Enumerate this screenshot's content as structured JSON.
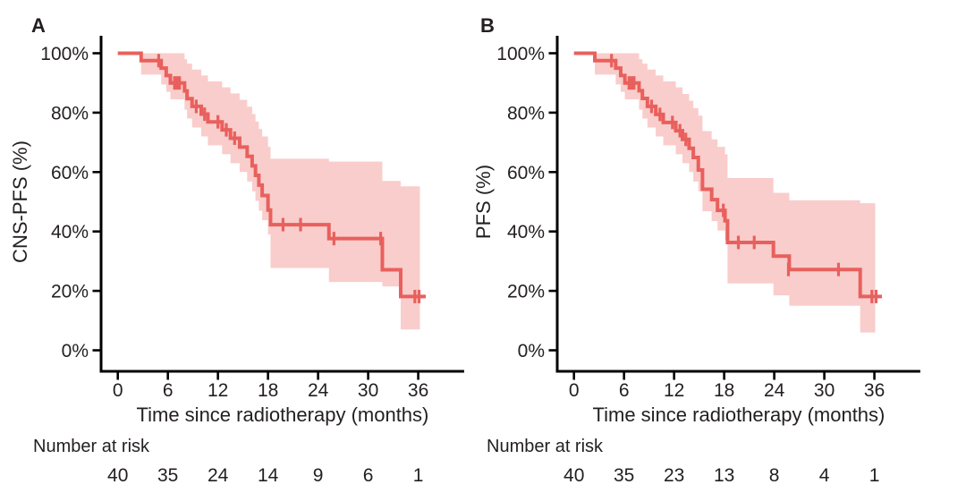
{
  "figure_title": "",
  "chart_data": [
    {
      "type": "line",
      "subtype": "kaplan-meier-survival",
      "panel_label": "A",
      "ylabel": "CNS-PFS (%)",
      "xlabel": "Time since radiotherapy (months)",
      "xlim": [
        0,
        42
      ],
      "ylim": [
        0,
        100
      ],
      "x_ticks": [
        0,
        6,
        12,
        18,
        24,
        30,
        36
      ],
      "x_tick_labels": [
        "0",
        "6",
        "12",
        "18",
        "24",
        "30",
        "36"
      ],
      "y_ticks": [
        0,
        20,
        40,
        60,
        80,
        100
      ],
      "y_tick_labels": [
        "0%",
        "20%",
        "40%",
        "60%",
        "80%",
        "100%"
      ],
      "line_color": "#E8605D",
      "band_color": "#F9CDCB",
      "steps": [
        {
          "t": 0,
          "s": 100
        },
        {
          "t": 2.8,
          "s": 97.5
        },
        {
          "t": 5.2,
          "s": 95
        },
        {
          "t": 5.8,
          "s": 92.5
        },
        {
          "t": 6.3,
          "s": 90
        },
        {
          "t": 8,
          "s": 87.3
        },
        {
          "t": 8.3,
          "s": 84.7
        },
        {
          "t": 8.9,
          "s": 82.1
        },
        {
          "t": 10,
          "s": 79.5
        },
        {
          "t": 10.8,
          "s": 76.9
        },
        {
          "t": 12.5,
          "s": 74.2
        },
        {
          "t": 13.5,
          "s": 71.4
        },
        {
          "t": 14.6,
          "s": 68.4
        },
        {
          "t": 15.5,
          "s": 65.3
        },
        {
          "t": 16.1,
          "s": 62.1
        },
        {
          "t": 16.5,
          "s": 58.9
        },
        {
          "t": 16.9,
          "s": 55.6
        },
        {
          "t": 17.3,
          "s": 52.1
        },
        {
          "t": 18,
          "s": 47.2
        },
        {
          "t": 18.3,
          "s": 42.3
        },
        {
          "t": 25.3,
          "s": 37.6
        },
        {
          "t": 31.7,
          "s": 27.1
        },
        {
          "t": 33.9,
          "s": 18.1
        }
      ],
      "curve_end": 36.9,
      "censors": [
        {
          "t": 4.9,
          "s": 97.5
        },
        {
          "t": 6.8,
          "s": 90
        },
        {
          "t": 7.1,
          "s": 90
        },
        {
          "t": 7.4,
          "s": 90
        },
        {
          "t": 9.4,
          "s": 82.1
        },
        {
          "t": 10.4,
          "s": 79.5
        },
        {
          "t": 12,
          "s": 76.9
        },
        {
          "t": 13,
          "s": 74.2
        },
        {
          "t": 14,
          "s": 71.4
        },
        {
          "t": 19.8,
          "s": 42.3
        },
        {
          "t": 21.9,
          "s": 42.3
        },
        {
          "t": 25.9,
          "s": 37.6
        },
        {
          "t": 31.5,
          "s": 37.6
        },
        {
          "t": 35.6,
          "s": 18.1
        },
        {
          "t": 36.1,
          "s": 18.1
        }
      ],
      "band": [
        {
          "t": 2.8,
          "lo": 92.8,
          "hi": 100
        },
        {
          "t": 5.2,
          "lo": 89.5,
          "hi": 100
        },
        {
          "t": 5.8,
          "lo": 87,
          "hi": 100
        },
        {
          "t": 6.3,
          "lo": 84.5,
          "hi": 100
        },
        {
          "t": 8,
          "lo": 81,
          "hi": 98
        },
        {
          "t": 8.3,
          "lo": 78,
          "hi": 96.5
        },
        {
          "t": 8.9,
          "lo": 75,
          "hi": 94.5
        },
        {
          "t": 10,
          "lo": 72,
          "hi": 92.5
        },
        {
          "t": 10.8,
          "lo": 69,
          "hi": 90.5
        },
        {
          "t": 12.5,
          "lo": 66,
          "hi": 88.5
        },
        {
          "t": 13.5,
          "lo": 63,
          "hi": 86.5
        },
        {
          "t": 14.6,
          "lo": 60,
          "hi": 84.3
        },
        {
          "t": 15.5,
          "lo": 56.8,
          "hi": 82
        },
        {
          "t": 16.1,
          "lo": 53.5,
          "hi": 79.5
        },
        {
          "t": 16.5,
          "lo": 50.3,
          "hi": 77
        },
        {
          "t": 16.9,
          "lo": 47,
          "hi": 74.5
        },
        {
          "t": 17.3,
          "lo": 43.8,
          "hi": 72
        },
        {
          "t": 18,
          "lo": 39,
          "hi": 68.5
        },
        {
          "t": 18.3,
          "lo": 27.7,
          "hi": 64.5
        },
        {
          "t": 25.3,
          "lo": 23,
          "hi": 63.5
        },
        {
          "t": 31.7,
          "lo": 21.5,
          "hi": 57
        },
        {
          "t": 33.9,
          "lo": 7,
          "hi": 55.2
        }
      ],
      "band_end": 36.2,
      "number_at_risk": {
        "label": "Number at risk",
        "times": [
          0,
          6,
          12,
          18,
          24,
          30,
          36
        ],
        "values": [
          40,
          35,
          24,
          14,
          9,
          6,
          1
        ]
      }
    },
    {
      "type": "line",
      "subtype": "kaplan-meier-survival",
      "panel_label": "B",
      "ylabel": "PFS (%)",
      "xlabel": "Time since radiotherapy (months)",
      "xlim": [
        0,
        42
      ],
      "ylim": [
        0,
        100
      ],
      "x_ticks": [
        0,
        6,
        12,
        18,
        24,
        30,
        36
      ],
      "x_tick_labels": [
        "0",
        "6",
        "12",
        "18",
        "24",
        "30",
        "36"
      ],
      "y_ticks": [
        0,
        20,
        40,
        60,
        80,
        100
      ],
      "y_tick_labels": [
        "0%",
        "20%",
        "40%",
        "60%",
        "80%",
        "100%"
      ],
      "line_color": "#E8605D",
      "band_color": "#F9CDCB",
      "steps": [
        {
          "t": 0,
          "s": 100
        },
        {
          "t": 2.5,
          "s": 97.5
        },
        {
          "t": 5,
          "s": 95
        },
        {
          "t": 5.6,
          "s": 92.5
        },
        {
          "t": 6.1,
          "s": 90
        },
        {
          "t": 7.8,
          "s": 87.4
        },
        {
          "t": 8.2,
          "s": 84.8
        },
        {
          "t": 8.8,
          "s": 82.1
        },
        {
          "t": 9.8,
          "s": 79.4
        },
        {
          "t": 10.7,
          "s": 76.7
        },
        {
          "t": 12.2,
          "s": 73.9
        },
        {
          "t": 13,
          "s": 71
        },
        {
          "t": 13.8,
          "s": 68
        },
        {
          "t": 14.3,
          "s": 64.9
        },
        {
          "t": 14.9,
          "s": 60.7
        },
        {
          "t": 15.4,
          "s": 54.2
        },
        {
          "t": 16.5,
          "s": 50.7
        },
        {
          "t": 17.2,
          "s": 47.1
        },
        {
          "t": 18.1,
          "s": 43.6
        },
        {
          "t": 18.4,
          "s": 36.3
        },
        {
          "t": 23.9,
          "s": 31.7
        },
        {
          "t": 25.8,
          "s": 27.2
        },
        {
          "t": 34.3,
          "s": 18.1
        }
      ],
      "curve_end": 36.9,
      "censors": [
        {
          "t": 4.5,
          "s": 97.5
        },
        {
          "t": 6.6,
          "s": 90
        },
        {
          "t": 6.9,
          "s": 90
        },
        {
          "t": 7.2,
          "s": 90
        },
        {
          "t": 9.3,
          "s": 82.1
        },
        {
          "t": 10.3,
          "s": 79.4
        },
        {
          "t": 11.8,
          "s": 76.7
        },
        {
          "t": 12.7,
          "s": 73.9
        },
        {
          "t": 13.4,
          "s": 71
        },
        {
          "t": 17.9,
          "s": 47.1
        },
        {
          "t": 19.7,
          "s": 36.3
        },
        {
          "t": 21.6,
          "s": 36.3
        },
        {
          "t": 25.7,
          "s": 27.2
        },
        {
          "t": 31.7,
          "s": 27.2
        },
        {
          "t": 35.7,
          "s": 18.1
        },
        {
          "t": 36.2,
          "s": 18.1
        }
      ],
      "band": [
        {
          "t": 2.5,
          "lo": 92.8,
          "hi": 100
        },
        {
          "t": 5,
          "lo": 89.5,
          "hi": 100
        },
        {
          "t": 5.6,
          "lo": 87,
          "hi": 100
        },
        {
          "t": 6.1,
          "lo": 84.5,
          "hi": 100
        },
        {
          "t": 7.8,
          "lo": 81,
          "hi": 98
        },
        {
          "t": 8.2,
          "lo": 78,
          "hi": 96.5
        },
        {
          "t": 8.8,
          "lo": 75,
          "hi": 94.5
        },
        {
          "t": 9.8,
          "lo": 72,
          "hi": 92.5
        },
        {
          "t": 10.7,
          "lo": 69,
          "hi": 90.5
        },
        {
          "t": 12.2,
          "lo": 66,
          "hi": 88.5
        },
        {
          "t": 13,
          "lo": 63,
          "hi": 86.3
        },
        {
          "t": 13.8,
          "lo": 60,
          "hi": 84
        },
        {
          "t": 14.3,
          "lo": 56.8,
          "hi": 81.5
        },
        {
          "t": 14.9,
          "lo": 53.5,
          "hi": 79
        },
        {
          "t": 15.4,
          "lo": 46.8,
          "hi": 73.8
        },
        {
          "t": 16.5,
          "lo": 43.5,
          "hi": 71
        },
        {
          "t": 17.2,
          "lo": 40.3,
          "hi": 68.5
        },
        {
          "t": 18.1,
          "lo": 37,
          "hi": 66
        },
        {
          "t": 18.4,
          "lo": 22.5,
          "hi": 58
        },
        {
          "t": 23.9,
          "lo": 18.5,
          "hi": 53
        },
        {
          "t": 25.8,
          "lo": 15,
          "hi": 50.5
        },
        {
          "t": 34.3,
          "lo": 6,
          "hi": 49.5
        }
      ],
      "band_end": 36.1,
      "number_at_risk": {
        "label": "Number at risk",
        "times": [
          0,
          6,
          12,
          18,
          24,
          30,
          36
        ],
        "values": [
          40,
          35,
          23,
          13,
          8,
          4,
          1
        ]
      }
    }
  ]
}
